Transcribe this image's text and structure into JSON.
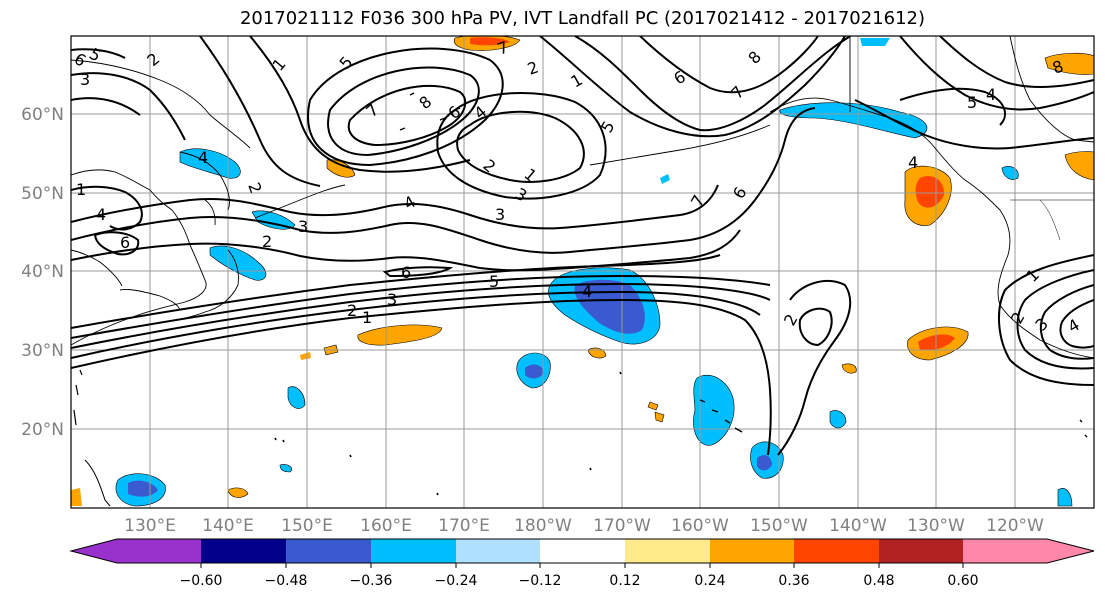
{
  "title": "2017021112 F036 300 hPa PV, IVT Landfall PC (2017021412 - 2017021612)",
  "map": {
    "lat_labels": [
      "20°N",
      "30°N",
      "40°N",
      "50°N",
      "60°N"
    ],
    "lon_labels": [
      "130°E",
      "140°E",
      "150°E",
      "160°E",
      "170°E",
      "180°W",
      "170°W",
      "160°W",
      "150°W",
      "140°W",
      "130°W",
      "120°W"
    ],
    "contour_labels": [
      "5",
      "3",
      "2",
      "1",
      "5",
      "8",
      "7",
      "6",
      "4",
      "2",
      "3",
      "1",
      "3",
      "4",
      "6",
      "7",
      "5",
      "4",
      "2",
      "3",
      "1",
      "8",
      "7",
      "6",
      "5",
      "4",
      "1",
      "2",
      "3",
      "4",
      "6",
      "2",
      "5",
      "2",
      "1",
      "3",
      "4",
      "2",
      "6",
      "4",
      "8",
      "7",
      "6",
      "4",
      "2",
      "1"
    ]
  },
  "colorbar": {
    "colors": [
      "#9932cc",
      "#00008b",
      "#3a5bd0",
      "#00bfff",
      "#b0e0ff",
      "#ffffff",
      "#ffeb8a",
      "#ffa500",
      "#ff4500",
      "#b22222",
      "#ff88aa"
    ],
    "tick_labels": [
      "−0.60",
      "−0.48",
      "−0.36",
      "−0.24",
      "−0.12",
      "0.12",
      "0.24",
      "0.36",
      "0.48",
      "0.60"
    ]
  }
}
